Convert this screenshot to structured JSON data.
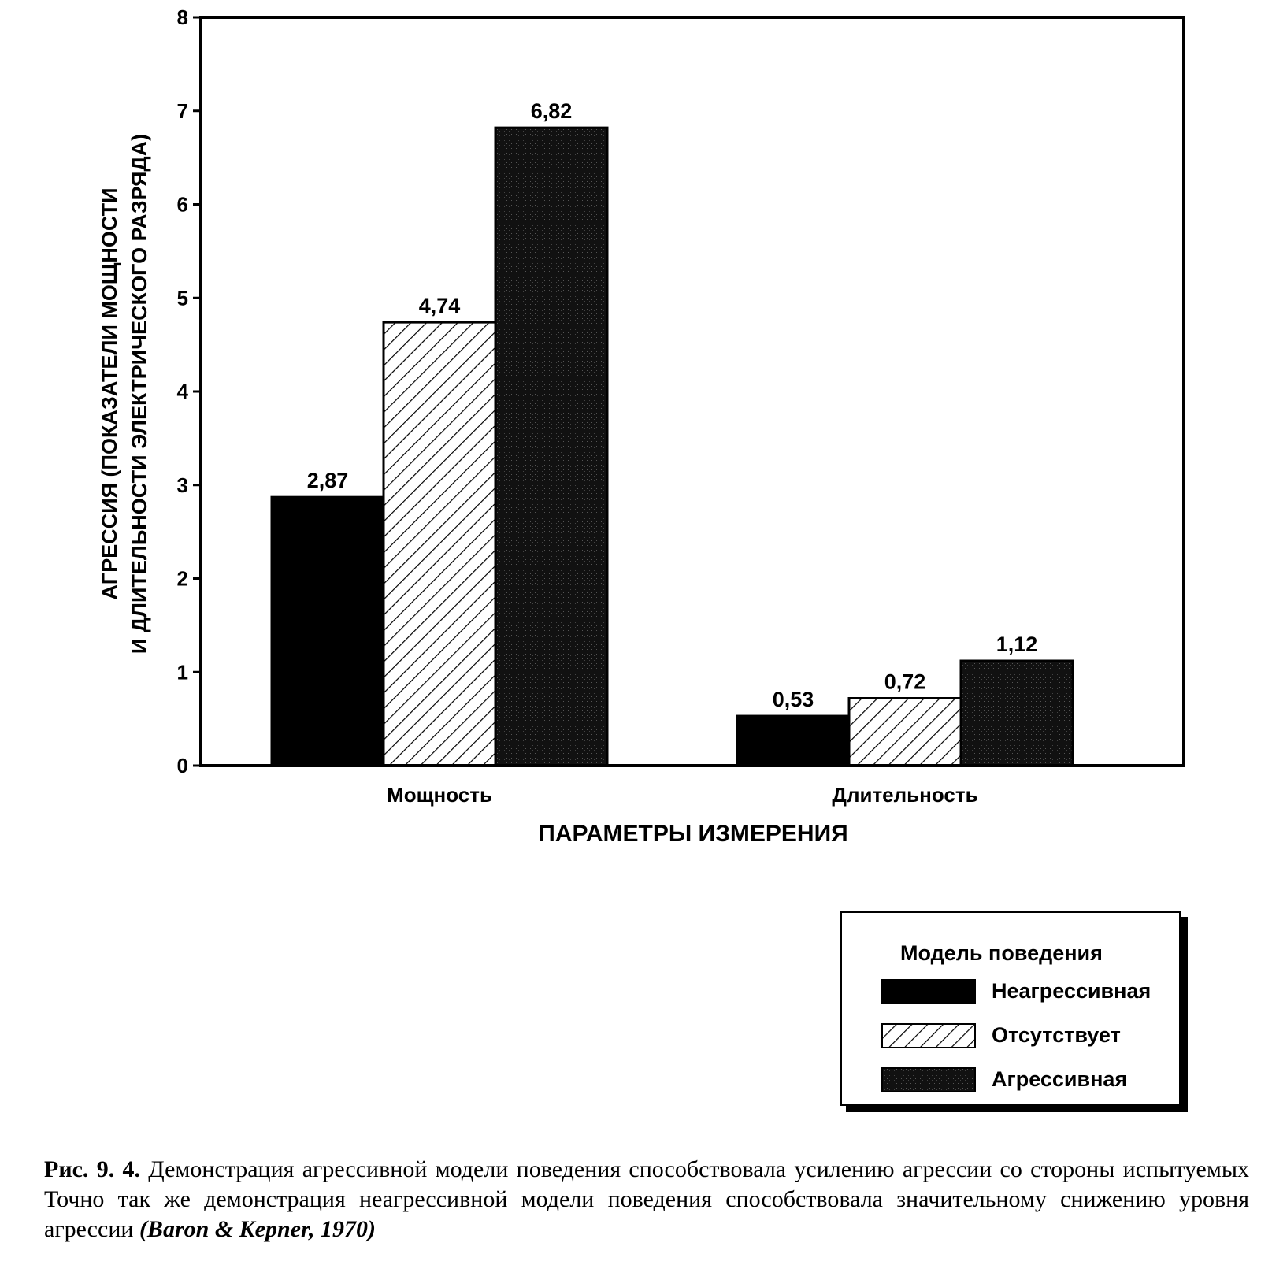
{
  "chart_data": {
    "type": "bar",
    "categories": [
      "Мощность",
      "Длительность"
    ],
    "series": [
      {
        "name": "Неагрессивная",
        "values": [
          2.87,
          0.53
        ],
        "labels": [
          "2,87",
          "0,53"
        ]
      },
      {
        "name": "Отсутствует",
        "values": [
          4.74,
          0.72
        ],
        "labels": [
          "4,74",
          "0,72"
        ]
      },
      {
        "name": "Агрессивная",
        "values": [
          6.82,
          1.12
        ],
        "labels": [
          "6,82",
          "1,12"
        ]
      }
    ],
    "xlabel": "ПАРАМЕТРЫ ИЗМЕРЕНИЯ",
    "ylabel": [
      "АГРЕССИЯ (ПОКАЗАТЕЛИ МОЩНОСТИ",
      "И ДЛИТЕЛЬНОСТИ ЭЛЕКТРИЧЕСКОГО РАЗРЯДА)"
    ],
    "ylim": [
      0,
      8
    ],
    "yticks": [
      "0",
      "1",
      "2",
      "3",
      "4",
      "5",
      "6",
      "7",
      "8"
    ],
    "grid": false,
    "legend": {
      "title": "Модель поведения",
      "position": "bottom-right"
    },
    "fills": {
      "Неагрессивная": "solid-black",
      "Отсутствует": "diagonal-hatch",
      "Агрессивная": "dark-stipple"
    }
  },
  "caption": {
    "figure_label": "Рис. 9. 4.",
    "text": "Демонстрация агрессивной модели поведения способствовала усилению агрессии со стороны испытуемых Точно так же демонстрация неагрессивной модели поведения способствовала значительному снижению уровня агрессии",
    "citation": "(Baron & Kepner, 1970)"
  },
  "colors": {
    "ink": "#000000",
    "stipple": "#1a1a1a",
    "paper": "#ffffff"
  }
}
